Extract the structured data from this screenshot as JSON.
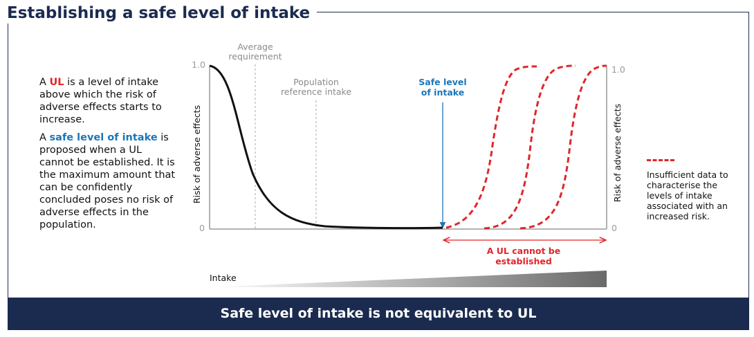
{
  "title": "Establishing a safe level of intake",
  "description": {
    "p1": {
      "pre": "A ",
      "hl": "UL",
      "post": " is a level of intake above which the risk of adverse effects starts to increase."
    },
    "p2": {
      "pre": "A ",
      "hl": "safe level of intake",
      "post": " is proposed when a UL cannot be established. It is the maximum amount that can be confidently concluded poses no risk of adverse effects in the population."
    }
  },
  "chart": {
    "y_axis_label": "Risk of adverse effects",
    "y_top_label": "1.0",
    "y_bottom_label": "0",
    "markers": {
      "average_requirement": [
        "Average",
        "requirement"
      ],
      "population_reference_intake": [
        "Population",
        "reference intake"
      ],
      "safe_level": [
        "Safe level",
        "of intake"
      ]
    },
    "ul_range_label": [
      "A UL cannot be",
      "established"
    ],
    "intake_label": "Intake",
    "colors": {
      "curve": "#111111",
      "dashed": "#e0262a",
      "safe": "#1c76b9",
      "axis": "#9a9a9a",
      "navy": "#1b2b4f"
    }
  },
  "legend": {
    "text": "Insufficient data to characterise the levels of intake associated with an increased risk."
  },
  "banner": "Safe level of intake is not equivalent to UL"
}
